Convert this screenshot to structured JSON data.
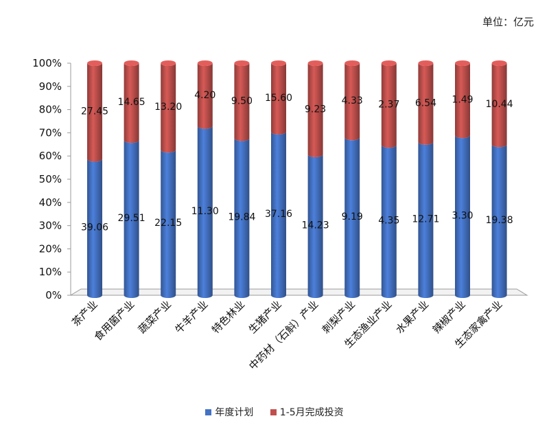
{
  "unit_label": "单位：亿元",
  "colors": {
    "plan": "#4472C4",
    "invest": "#C0504D"
  },
  "chart_data": {
    "type": "bar",
    "stacked": "percent",
    "categories": [
      "茶产业",
      "食用菌产业",
      "蔬菜产业",
      "牛羊产业",
      "特色林业",
      "生猪产业",
      "中药材（石斛）产业",
      "刺梨产业",
      "生态渔业产业",
      "水果产业",
      "辣椒产业",
      "生态家禽产业"
    ],
    "series": [
      {
        "name": "年度计划",
        "values": [
          39.06,
          29.51,
          22.15,
          11.3,
          19.84,
          37.16,
          14.23,
          9.19,
          4.35,
          12.71,
          3.3,
          19.38
        ]
      },
      {
        "name": "1-5月完成投资",
        "values": [
          27.45,
          14.65,
          13.2,
          4.2,
          9.5,
          15.6,
          9.23,
          4.33,
          2.37,
          6.54,
          1.49,
          10.44
        ]
      }
    ],
    "data_labels": [
      [
        "39.06",
        "29.51",
        "22.15",
        "11.30",
        "19.84",
        "37.16",
        "14.23",
        "9.19",
        "4.35",
        "12.71",
        "3.30",
        "19.38"
      ],
      [
        "27.45",
        "14.65",
        "13.20",
        "4.20",
        "9.50",
        "15.60",
        "9.23",
        "4.33",
        "2.37",
        "6.54",
        "1.49",
        "10.44"
      ]
    ],
    "yticks": [
      "0%",
      "10%",
      "20%",
      "30%",
      "40%",
      "50%",
      "60%",
      "70%",
      "80%",
      "90%",
      "100%"
    ],
    "ylim": [
      0,
      100
    ],
    "grid": false,
    "legend_position": "bottom"
  }
}
